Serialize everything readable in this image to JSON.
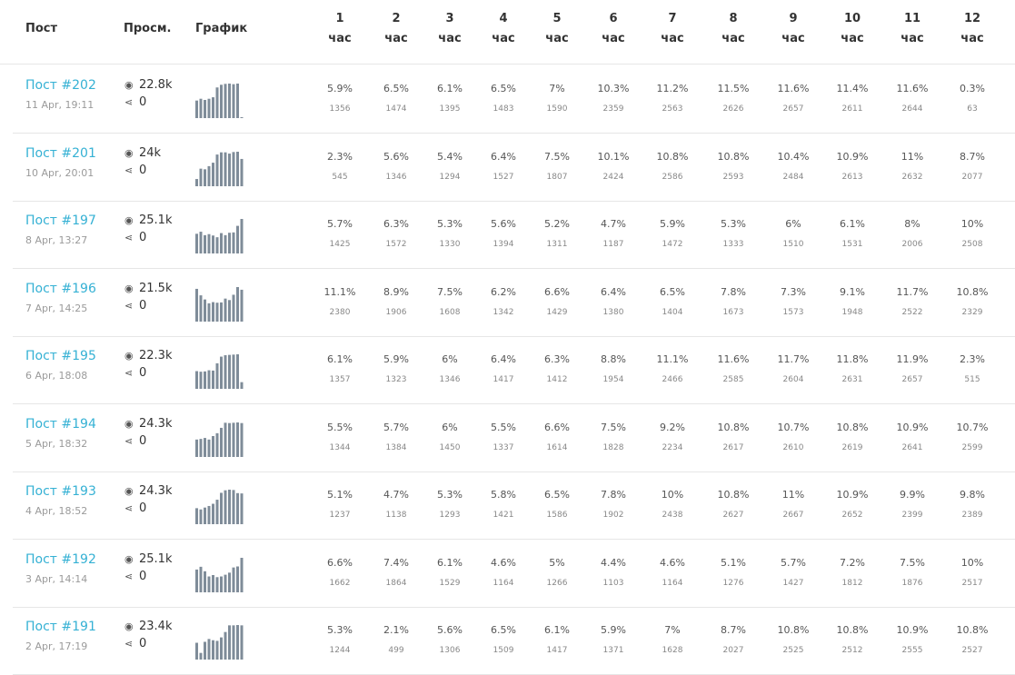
{
  "columns": {
    "post": "Пост",
    "views": "Просм.",
    "chart": "График",
    "hours": [
      {
        "num": "1",
        "unit": "час"
      },
      {
        "num": "2",
        "unit": "час"
      },
      {
        "num": "3",
        "unit": "час"
      },
      {
        "num": "4",
        "unit": "час"
      },
      {
        "num": "5",
        "unit": "час"
      },
      {
        "num": "6",
        "unit": "час"
      },
      {
        "num": "7",
        "unit": "час"
      },
      {
        "num": "8",
        "unit": "час"
      },
      {
        "num": "9",
        "unit": "час"
      },
      {
        "num": "10",
        "unit": "час"
      },
      {
        "num": "11",
        "unit": "час"
      },
      {
        "num": "12",
        "unit": "час"
      }
    ]
  },
  "icons": {
    "views": "eye-icon",
    "shares": "share-icon"
  },
  "colors": {
    "link": "#35b1d4",
    "bar": "#7f8c99",
    "divider": "#e6e6e6"
  },
  "posts": [
    {
      "title": "Пост #202",
      "date": "11 Apr, 19:11",
      "views": "22.8k",
      "shares": "0",
      "pct": [
        "5.9%",
        "6.5%",
        "6.1%",
        "6.5%",
        "7%",
        "10.3%",
        "11.2%",
        "11.5%",
        "11.6%",
        "11.4%",
        "11.6%",
        "0.3%"
      ],
      "counts": [
        "1356",
        "1474",
        "1395",
        "1483",
        "1590",
        "2359",
        "2563",
        "2626",
        "2657",
        "2611",
        "2644",
        "63"
      ]
    },
    {
      "title": "Пост #201",
      "date": "10 Apr, 20:01",
      "views": "24k",
      "shares": "0",
      "pct": [
        "2.3%",
        "5.6%",
        "5.4%",
        "6.4%",
        "7.5%",
        "10.1%",
        "10.8%",
        "10.8%",
        "10.4%",
        "10.9%",
        "11%",
        "8.7%"
      ],
      "counts": [
        "545",
        "1346",
        "1294",
        "1527",
        "1807",
        "2424",
        "2586",
        "2593",
        "2484",
        "2613",
        "2632",
        "2077"
      ]
    },
    {
      "title": "Пост #197",
      "date": "8 Apr, 13:27",
      "views": "25.1k",
      "shares": "0",
      "pct": [
        "5.7%",
        "6.3%",
        "5.3%",
        "5.6%",
        "5.2%",
        "4.7%",
        "5.9%",
        "5.3%",
        "6%",
        "6.1%",
        "8%",
        "10%"
      ],
      "counts": [
        "1425",
        "1572",
        "1330",
        "1394",
        "1311",
        "1187",
        "1472",
        "1333",
        "1510",
        "1531",
        "2006",
        "2508"
      ]
    },
    {
      "title": "Пост #196",
      "date": "7 Apr, 14:25",
      "views": "21.5k",
      "shares": "0",
      "pct": [
        "11.1%",
        "8.9%",
        "7.5%",
        "6.2%",
        "6.6%",
        "6.4%",
        "6.5%",
        "7.8%",
        "7.3%",
        "9.1%",
        "11.7%",
        "10.8%"
      ],
      "counts": [
        "2380",
        "1906",
        "1608",
        "1342",
        "1429",
        "1380",
        "1404",
        "1673",
        "1573",
        "1948",
        "2522",
        "2329"
      ]
    },
    {
      "title": "Пост #195",
      "date": "6 Apr, 18:08",
      "views": "22.3k",
      "shares": "0",
      "pct": [
        "6.1%",
        "5.9%",
        "6%",
        "6.4%",
        "6.3%",
        "8.8%",
        "11.1%",
        "11.6%",
        "11.7%",
        "11.8%",
        "11.9%",
        "2.3%"
      ],
      "counts": [
        "1357",
        "1323",
        "1346",
        "1417",
        "1412",
        "1954",
        "2466",
        "2585",
        "2604",
        "2631",
        "2657",
        "515"
      ]
    },
    {
      "title": "Пост #194",
      "date": "5 Apr, 18:32",
      "views": "24.3k",
      "shares": "0",
      "pct": [
        "5.5%",
        "5.7%",
        "6%",
        "5.5%",
        "6.6%",
        "7.5%",
        "9.2%",
        "10.8%",
        "10.7%",
        "10.8%",
        "10.9%",
        "10.7%"
      ],
      "counts": [
        "1344",
        "1384",
        "1450",
        "1337",
        "1614",
        "1828",
        "2234",
        "2617",
        "2610",
        "2619",
        "2641",
        "2599"
      ]
    },
    {
      "title": "Пост #193",
      "date": "4 Apr, 18:52",
      "views": "24.3k",
      "shares": "0",
      "pct": [
        "5.1%",
        "4.7%",
        "5.3%",
        "5.8%",
        "6.5%",
        "7.8%",
        "10%",
        "10.8%",
        "11%",
        "10.9%",
        "9.9%",
        "9.8%"
      ],
      "counts": [
        "1237",
        "1138",
        "1293",
        "1421",
        "1586",
        "1902",
        "2438",
        "2627",
        "2667",
        "2652",
        "2399",
        "2389"
      ]
    },
    {
      "title": "Пост #192",
      "date": "3 Apr, 14:14",
      "views": "25.1k",
      "shares": "0",
      "pct": [
        "6.6%",
        "7.4%",
        "6.1%",
        "4.6%",
        "5%",
        "4.4%",
        "4.6%",
        "5.1%",
        "5.7%",
        "7.2%",
        "7.5%",
        "10%"
      ],
      "counts": [
        "1662",
        "1864",
        "1529",
        "1164",
        "1266",
        "1103",
        "1164",
        "1276",
        "1427",
        "1812",
        "1876",
        "2517"
      ]
    },
    {
      "title": "Пост #191",
      "date": "2 Apr, 17:19",
      "views": "23.4k",
      "shares": "0",
      "pct": [
        "5.3%",
        "2.1%",
        "5.6%",
        "6.5%",
        "6.1%",
        "5.9%",
        "7%",
        "8.7%",
        "10.8%",
        "10.8%",
        "10.9%",
        "10.8%"
      ],
      "counts": [
        "1244",
        "499",
        "1306",
        "1509",
        "1417",
        "1371",
        "1628",
        "2027",
        "2525",
        "2512",
        "2555",
        "2527"
      ]
    }
  ]
}
